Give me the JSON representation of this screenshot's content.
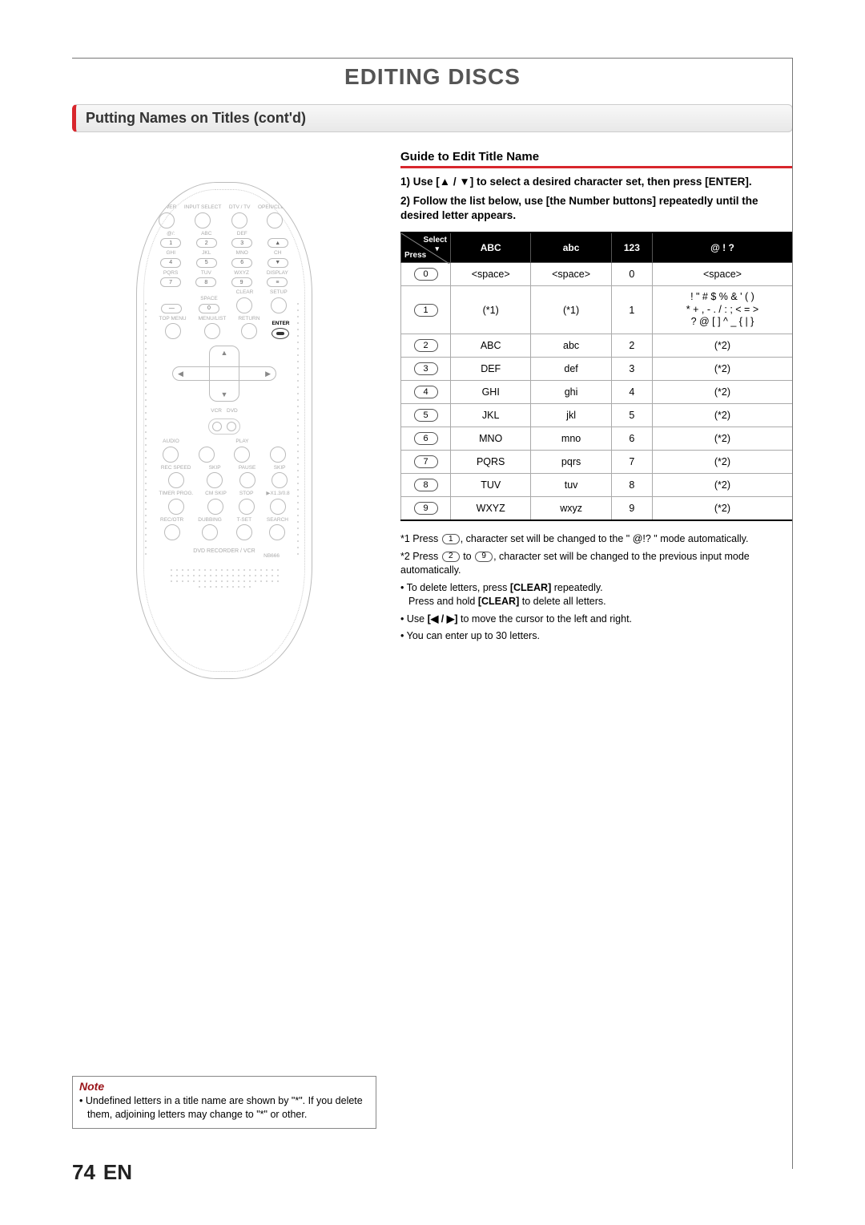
{
  "page": {
    "title": "EDITING DISCS",
    "section_title": "Putting Names on Titles (cont'd)",
    "page_number": "74",
    "lang": "EN"
  },
  "guide": {
    "heading": "Guide to Edit Title Name",
    "step1_prefix": "1) Use [",
    "step1_mid": " / ",
    "step1_suffix": "] to select a desired character set, then press [ENTER].",
    "up_glyph": "▲",
    "down_glyph": "▼",
    "step2": "2) Follow the list below, use [the Number buttons] repeatedly until the desired letter appears."
  },
  "char_table": {
    "diag_select": "Select",
    "diag_press": "Press",
    "diag_arrow": "▾",
    "headers": [
      "ABC",
      "abc",
      "123",
      "@ ! ?"
    ],
    "rows": [
      {
        "key": "0",
        "cells": [
          "<space>",
          "<space>",
          "0",
          "<space>"
        ]
      },
      {
        "key": "1",
        "cells": [
          "(*1)",
          "(*1)",
          "1",
          "! \" # $ % & ' ( )\n* + , - . / : ; < = >\n? @ [ ] ^ _ { | }"
        ]
      },
      {
        "key": "2",
        "cells": [
          "ABC",
          "abc",
          "2",
          "(*2)"
        ]
      },
      {
        "key": "3",
        "cells": [
          "DEF",
          "def",
          "3",
          "(*2)"
        ]
      },
      {
        "key": "4",
        "cells": [
          "GHI",
          "ghi",
          "4",
          "(*2)"
        ]
      },
      {
        "key": "5",
        "cells": [
          "JKL",
          "jkl",
          "5",
          "(*2)"
        ]
      },
      {
        "key": "6",
        "cells": [
          "MNO",
          "mno",
          "6",
          "(*2)"
        ]
      },
      {
        "key": "7",
        "cells": [
          "PQRS",
          "pqrs",
          "7",
          "(*2)"
        ]
      },
      {
        "key": "8",
        "cells": [
          "TUV",
          "tuv",
          "8",
          "(*2)"
        ]
      },
      {
        "key": "9",
        "cells": [
          "WXYZ",
          "wxyz",
          "9",
          "(*2)"
        ]
      }
    ]
  },
  "footnotes": {
    "n1_a": "*1 Press ",
    "n1_key": "1",
    "n1_b": ", character set will be changed to the \" @!? \" mode automatically.",
    "n2_a": "*2 Press ",
    "n2_key_from": "2",
    "n2_mid": " to ",
    "n2_key_to": "9",
    "n2_b": ", character set will be changed to the previous input mode automatically.",
    "b1_a": "To delete letters, press ",
    "b1_bold1": "[CLEAR]",
    "b1_b": " repeatedly.",
    "b1_line2a": "Press and hold ",
    "b1_line2b": " to delete all letters.",
    "b2_a": "Use ",
    "b2_bold": "[◀ / ▶]",
    "b2_b": " to move the cursor to the left and right.",
    "b3": "You can enter up to 30 letters."
  },
  "note_box": {
    "title": "Note",
    "text": "• Undefined letters in a title name are shown by \"*\". If you delete them, adjoining letters may change to \"*\" or other."
  },
  "remote": {
    "row1": [
      "POWER",
      "INPUT SELECT",
      "DTV / TV",
      "OPEN/CLOSE"
    ],
    "numpad_labels": [
      "@/:",
      "ABC",
      "DEF",
      "GHI",
      "JKL",
      "MNO",
      "PQRS",
      "TUV",
      "WXYZ",
      "SPACE",
      "CLEAR",
      "SETUP",
      "DISPLAY",
      "CH"
    ],
    "numpad_keys": [
      "1",
      "2",
      "3",
      "4",
      "5",
      "6",
      "7",
      "8",
      "9",
      "0"
    ],
    "row_menu": [
      "TOP MENU",
      "MENU/LIST",
      "RETURN",
      "ENTER"
    ],
    "vcr_dvd": [
      "VCR",
      "DVD"
    ],
    "row_audio": [
      "AUDIO",
      "",
      "PLAY",
      ""
    ],
    "row_speed": [
      "REC SPEED",
      "SKIP",
      "PAUSE",
      "SKIP"
    ],
    "row_timer": [
      "TIMER PROG.",
      "CM SKIP",
      "STOP",
      "▶X1.3/0.8"
    ],
    "row_rec": [
      "REC/OTR",
      "DUBBING",
      "T-SET",
      "SEARCH"
    ],
    "footer": "DVD RECORDER / VCR",
    "model": "NB666"
  }
}
